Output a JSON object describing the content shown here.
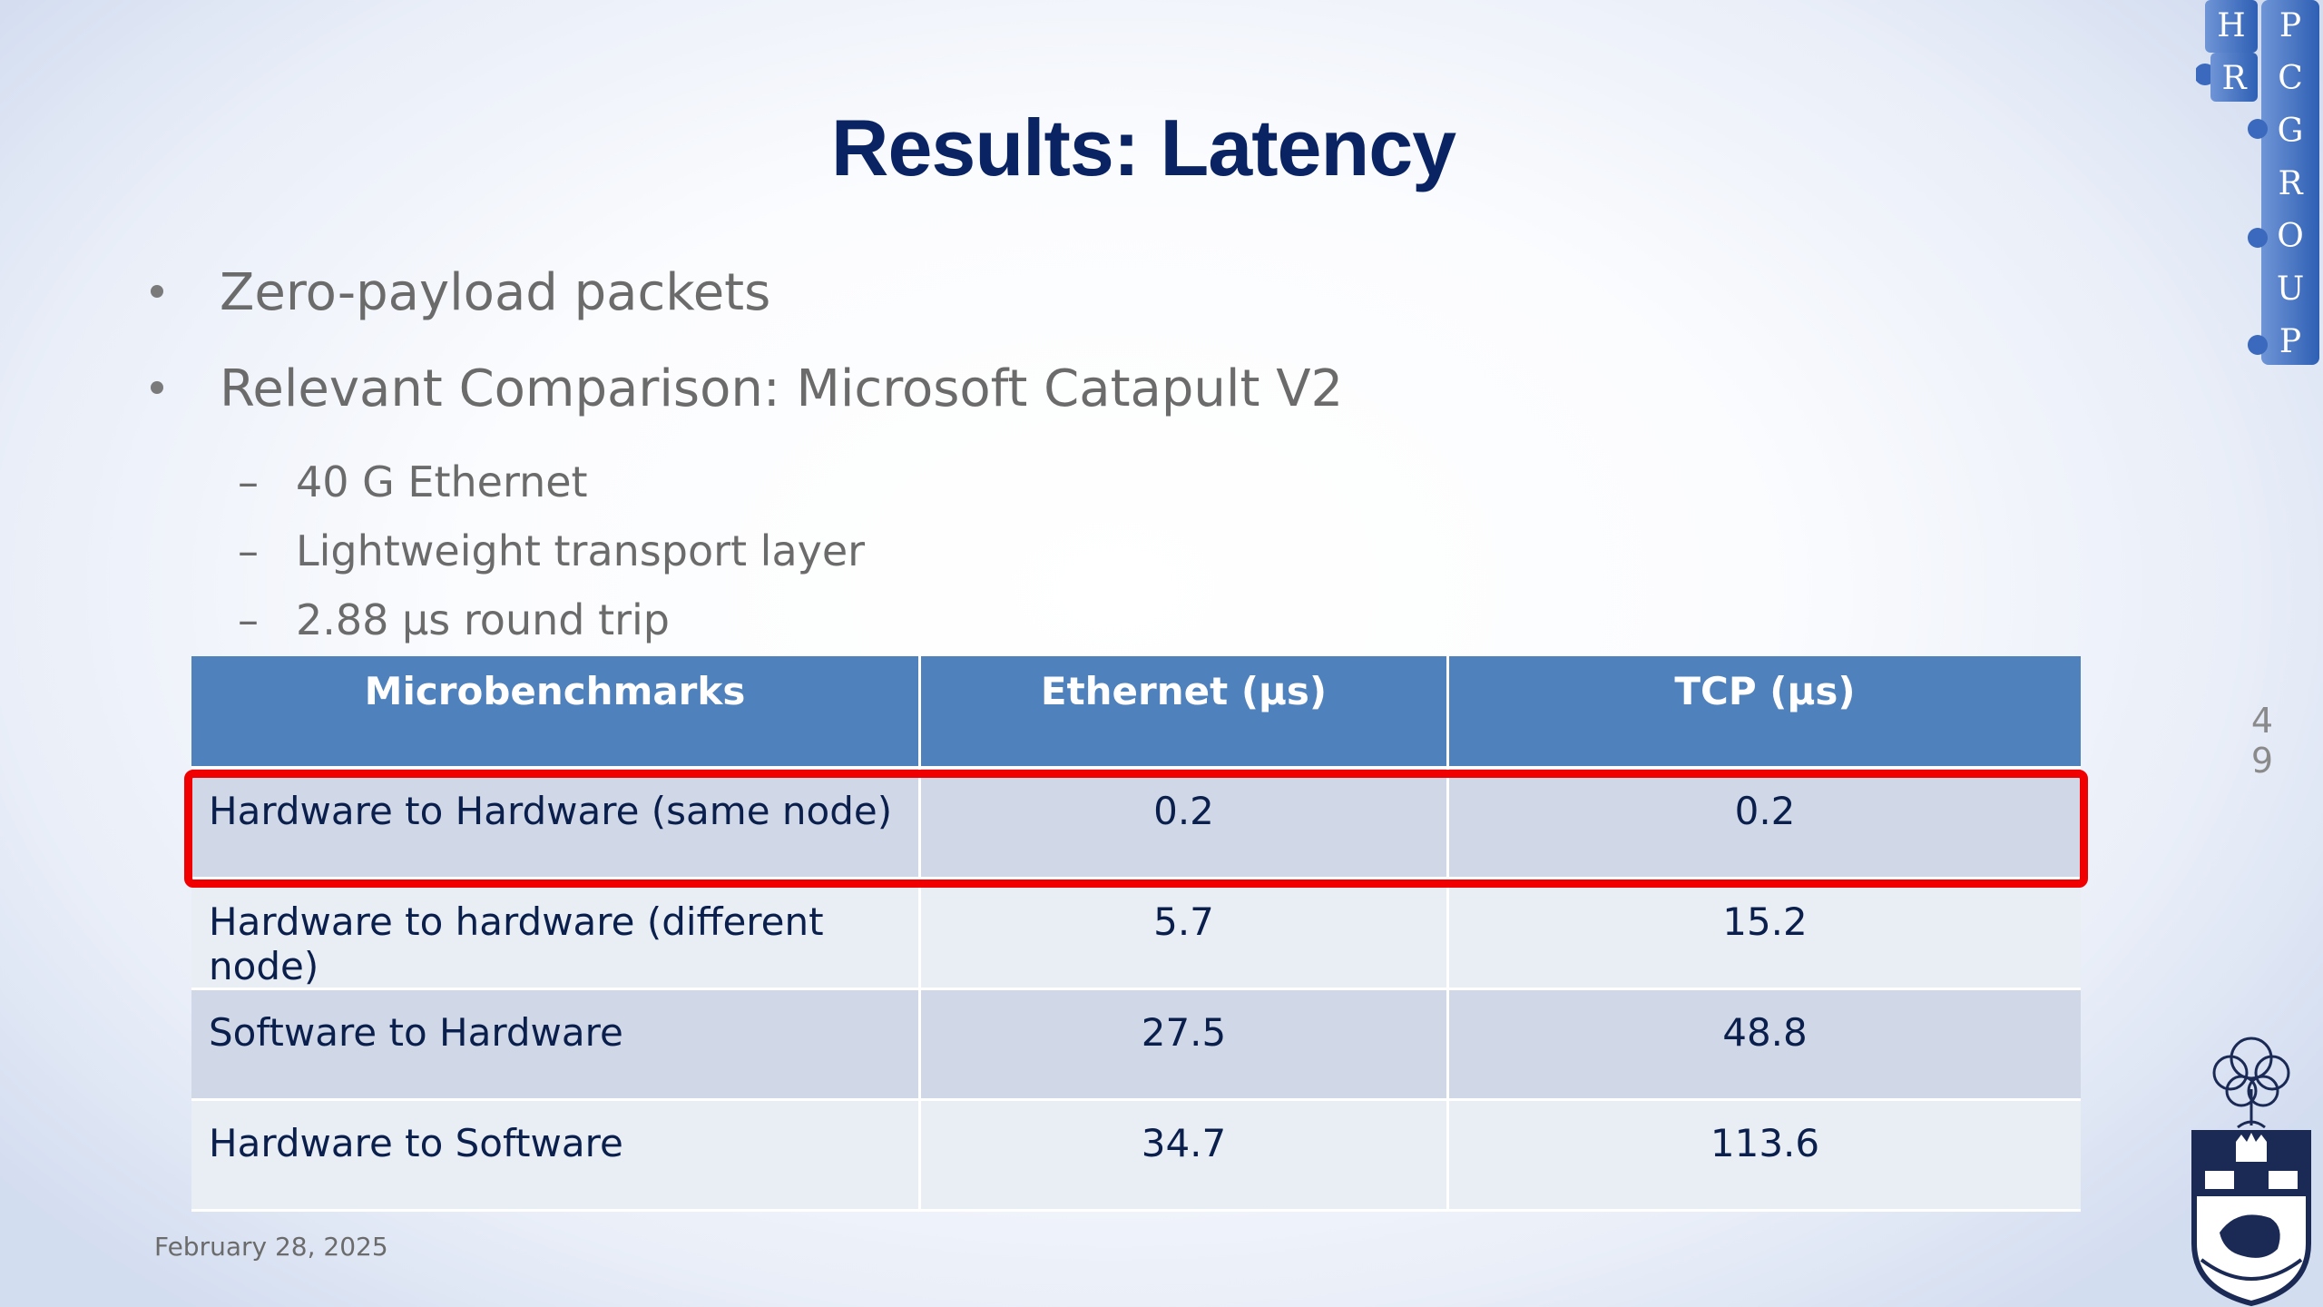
{
  "slide": {
    "title": "Results: Latency",
    "bullets": [
      "Zero-payload packets",
      "Relevant Comparison: Microsoft Catapult V2"
    ],
    "sub_bullets": [
      "40 G Ethernet",
      "Lightweight transport layer",
      "2.88 µs round trip"
    ],
    "dash": "–",
    "date": "February 28, 2025",
    "page_number": "49",
    "logo_text": "HPRCGROUP"
  },
  "table": {
    "headers": [
      "Microbenchmarks",
      "Ethernet (µs)",
      "TCP (µs)"
    ],
    "rows": [
      [
        "Hardware to Hardware (same node)",
        "0.2",
        "0.2"
      ],
      [
        "Hardware to hardware (different node)",
        "5.7",
        "15.2"
      ],
      [
        "Software to Hardware",
        "27.5",
        "48.8"
      ],
      [
        "Hardware to Software",
        "34.7",
        "113.6"
      ]
    ],
    "highlighted_row": 0
  },
  "colors": {
    "title": "#0a2463",
    "header_bg": "#4f81bd",
    "row_dark": "#d0d8e8",
    "row_light": "#e9edf4",
    "highlight": "#f00000",
    "body_text": "#6b6b6b"
  }
}
